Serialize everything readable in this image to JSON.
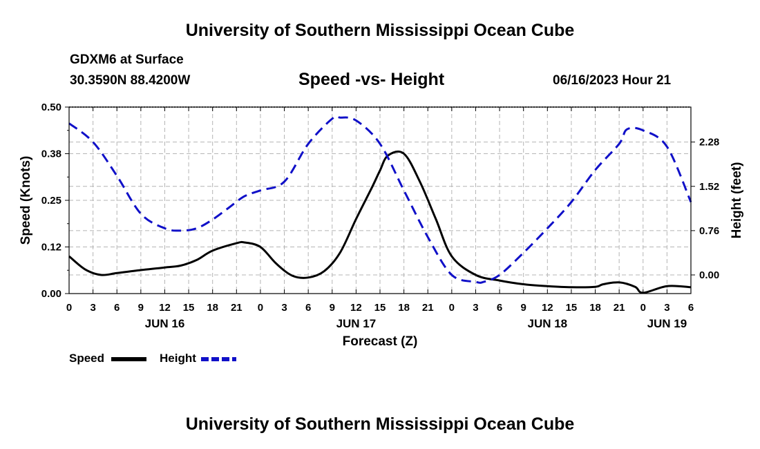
{
  "header": {
    "title": "University of Southern Mississippi Ocean Cube",
    "station": "GDXM6 at Surface",
    "coords": "30.3590N  88.4200W",
    "chart_title": "Speed -vs- Height",
    "datetime": "06/16/2023 Hour 21"
  },
  "footer": {
    "title": "University of Southern Mississippi Ocean Cube"
  },
  "legend": {
    "speed_label": "Speed",
    "height_label": "Height"
  },
  "colors": {
    "speed": "#000000",
    "height": "#1010c8",
    "grid": "#b4b4b4"
  },
  "chart_data": {
    "type": "line",
    "title": "Speed -vs- Height",
    "xlabel": "Forecast (Z)",
    "ylabel": "Speed (Knots)",
    "y2label": "Height (feet)",
    "xlim": [
      0,
      78
    ],
    "ylim": [
      0,
      0.5
    ],
    "y2lim": [
      -0.32,
      2.88
    ],
    "grid": true,
    "x_ticks": [
      {
        "h": 0,
        "label": "0"
      },
      {
        "h": 3,
        "label": "3"
      },
      {
        "h": 6,
        "label": "6"
      },
      {
        "h": 9,
        "label": "9"
      },
      {
        "h": 12,
        "label": "12"
      },
      {
        "h": 15,
        "label": "15"
      },
      {
        "h": 18,
        "label": "18"
      },
      {
        "h": 21,
        "label": "21"
      },
      {
        "h": 24,
        "label": "0"
      },
      {
        "h": 27,
        "label": "3"
      },
      {
        "h": 30,
        "label": "6"
      },
      {
        "h": 33,
        "label": "9"
      },
      {
        "h": 36,
        "label": "12"
      },
      {
        "h": 39,
        "label": "15"
      },
      {
        "h": 42,
        "label": "18"
      },
      {
        "h": 45,
        "label": "21"
      },
      {
        "h": 48,
        "label": "0"
      },
      {
        "h": 51,
        "label": "3"
      },
      {
        "h": 54,
        "label": "6"
      },
      {
        "h": 57,
        "label": "9"
      },
      {
        "h": 60,
        "label": "12"
      },
      {
        "h": 63,
        "label": "15"
      },
      {
        "h": 66,
        "label": "18"
      },
      {
        "h": 69,
        "label": "21"
      },
      {
        "h": 72,
        "label": "0"
      },
      {
        "h": 75,
        "label": "3"
      },
      {
        "h": 78,
        "label": "6"
      }
    ],
    "day_labels": [
      {
        "h": 12,
        "label": "JUN 16"
      },
      {
        "h": 36,
        "label": "JUN 17"
      },
      {
        "h": 60,
        "label": "JUN 18"
      },
      {
        "h": 75,
        "label": "JUN 19"
      }
    ],
    "y_ticks": [
      {
        "v": 0.0,
        "label": "0.00"
      },
      {
        "v": 0.125,
        "label": "0.12"
      },
      {
        "v": 0.25,
        "label": "0.25"
      },
      {
        "v": 0.375,
        "label": "0.38"
      },
      {
        "v": 0.5,
        "label": "0.50"
      }
    ],
    "y2_ticks": [
      {
        "v": 0.0,
        "label": "0.00"
      },
      {
        "v": 0.76,
        "label": "0.76"
      },
      {
        "v": 1.52,
        "label": "1.52"
      },
      {
        "v": 2.28,
        "label": "2.28"
      }
    ],
    "series": [
      {
        "name": "Speed",
        "axis": "left",
        "style": "solid",
        "x": [
          0,
          2,
          4,
          6,
          9,
          12,
          14,
          16,
          18,
          21,
          22,
          24,
          26,
          28,
          30,
          32,
          34,
          36,
          38,
          39,
          40,
          42,
          44,
          46,
          48,
          51,
          54,
          57,
          60,
          63,
          66,
          67,
          69,
          71,
          72,
          75,
          78
        ],
        "values": [
          0.1,
          0.065,
          0.05,
          0.055,
          0.063,
          0.07,
          0.075,
          0.09,
          0.115,
          0.135,
          0.137,
          0.125,
          0.08,
          0.048,
          0.043,
          0.06,
          0.11,
          0.2,
          0.285,
          0.33,
          0.37,
          0.375,
          0.3,
          0.2,
          0.1,
          0.05,
          0.035,
          0.025,
          0.02,
          0.017,
          0.018,
          0.025,
          0.03,
          0.018,
          0.002,
          0.02,
          0.017
        ]
      },
      {
        "name": "Height",
        "axis": "right",
        "style": "dashed",
        "x": [
          0,
          3,
          6,
          9,
          12,
          14,
          16,
          18,
          20,
          22,
          24,
          27,
          30,
          33,
          34,
          36,
          39,
          42,
          45,
          48,
          51,
          52,
          54,
          57,
          60,
          63,
          66,
          69,
          70,
          72,
          75,
          78
        ],
        "values": [
          2.6,
          2.28,
          1.7,
          1.05,
          0.8,
          0.76,
          0.8,
          0.95,
          1.15,
          1.35,
          1.45,
          1.6,
          2.25,
          2.68,
          2.7,
          2.65,
          2.25,
          1.45,
          0.65,
          0.0,
          -0.12,
          -0.12,
          0.0,
          0.38,
          0.8,
          1.25,
          1.8,
          2.25,
          2.5,
          2.48,
          2.2,
          1.25
        ]
      }
    ]
  }
}
